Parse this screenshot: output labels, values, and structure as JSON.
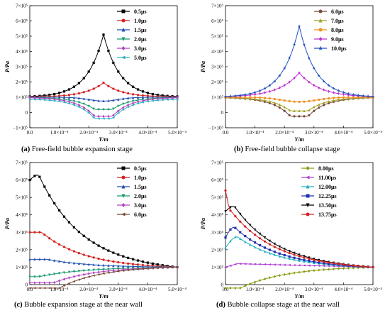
{
  "figure": {
    "panels": [
      {
        "id": "a",
        "caption_letter": "(a)",
        "caption_text": " Free-field bubble expansion stage",
        "xlabel": "Y/m",
        "ylabel": "P/Pa",
        "legend_position": "top-right"
      },
      {
        "id": "b",
        "caption_letter": "(b)",
        "caption_text": " Free-field bubble collapse stage",
        "xlabel": "Y/m",
        "ylabel": "P/Pa",
        "legend_position": "top-right"
      },
      {
        "id": "c",
        "caption_letter": "(c)",
        "caption_text": " Bubble expansion stage at the near wall",
        "xlabel": "Y/m",
        "ylabel": "P/Pa",
        "legend_position": "top-right"
      },
      {
        "id": "d",
        "caption_letter": "(d)",
        "caption_text": " Bubble collapse stage at the near wall",
        "xlabel": "Y/m",
        "ylabel": "P/Pa",
        "legend_position": "top-right"
      }
    ]
  },
  "chart_data": [
    {
      "type": "line",
      "xlabel": "Y/m",
      "ylabel": "P/Pa",
      "xlim": [
        0,
        0.0005
      ],
      "ylim": [
        -100000,
        700000
      ],
      "xticks": [
        "0.0",
        "1.0×10⁻⁴",
        "2.0×10⁻⁴",
        "3.0×10⁻⁴",
        "4.0×10⁻⁴",
        "5.0×10⁻⁴"
      ],
      "yticks": [
        "−1×10⁵",
        "0",
        "1×10⁵",
        "2×10⁵",
        "3×10⁵",
        "4×10⁵",
        "5×10⁵",
        "6×10⁵",
        "7×10⁵"
      ],
      "legend": "top-right",
      "series": [
        {
          "name": "0.5μs",
          "color": "#000000",
          "marker": "square",
          "shape": "peak",
          "base": 100000,
          "center": 510000,
          "width": 8e-05
        },
        {
          "name": "1.0μs",
          "color": "#d42020",
          "marker": "circle",
          "shape": "peak",
          "base": 100000,
          "center": 195000,
          "width": 9e-05
        },
        {
          "name": "1.5μs",
          "color": "#2050b0",
          "marker": "triangle",
          "shape": "dip",
          "base": 100000,
          "center": 75000,
          "width": 5e-05
        },
        {
          "name": "2.0μs",
          "color": "#1a9a70",
          "marker": "triangle-down",
          "shape": "flatdip",
          "base": 100000,
          "center": 20000,
          "width": 6e-05
        },
        {
          "name": "3.0μs",
          "color": "#b040c0",
          "marker": "diamond",
          "shape": "flatdip",
          "base": 100000,
          "center": -25000,
          "width": 6e-05
        },
        {
          "name": "5.0μs",
          "color": "#30b0c0",
          "marker": "triangle-left",
          "shape": "flatdip",
          "base": 90000,
          "center": -40000,
          "width": 6e-05
        }
      ]
    },
    {
      "type": "line",
      "xlabel": "Y/m",
      "ylabel": "P/Pa",
      "xlim": [
        0,
        0.0005
      ],
      "ylim": [
        -100000,
        700000
      ],
      "xticks": [
        "0.0",
        "1.0×10⁻⁴",
        "2.0×10⁻⁴",
        "3.0×10⁻⁴",
        "4.0×10⁻⁴",
        "5.0×10⁻⁴"
      ],
      "yticks": [
        "−1×10⁵",
        "0",
        "1×10⁵",
        "2×10⁵",
        "3×10⁵",
        "4×10⁵",
        "5×10⁵",
        "6×10⁵",
        "7×10⁵"
      ],
      "legend": "top-right",
      "series": [
        {
          "name": "6.0μs",
          "color": "#7a4b3a",
          "marker": "circle",
          "shape": "flatdip",
          "base": 100000,
          "center": -25000,
          "width": 6e-05
        },
        {
          "name": "7.0μs",
          "color": "#a0a020",
          "marker": "triangle",
          "shape": "flatdip",
          "base": 100000,
          "center": 10000,
          "width": 6e-05
        },
        {
          "name": "8.0μs",
          "color": "#f09020",
          "marker": "circle",
          "shape": "dip",
          "base": 100000,
          "center": 70000,
          "width": 6e-05
        },
        {
          "name": "9.0μs",
          "color": "#c030d0",
          "marker": "diamond",
          "shape": "peak",
          "base": 100000,
          "center": 260000,
          "width": 0.0001
        },
        {
          "name": "10.0μs",
          "color": "#2050c0",
          "marker": "star",
          "shape": "peak",
          "base": 100000,
          "center": 565000,
          "width": 8e-05
        }
      ]
    },
    {
      "type": "line",
      "xlabel": "Y/m",
      "ylabel": "P/Pa",
      "xlim": [
        0,
        0.0005
      ],
      "ylim": [
        0,
        700000
      ],
      "xticks": [
        "0.0",
        "1.0×10⁻⁴",
        "2.0×10⁻⁴",
        "3.0×10⁻⁴",
        "4.0×10⁻⁴",
        "5.0×10⁻⁴"
      ],
      "yticks": [
        "0",
        "1×10⁵",
        "2×10⁵",
        "3×10⁵",
        "4×10⁵",
        "5×10⁵",
        "6×10⁵",
        "7×10⁵"
      ],
      "legend": "top-right",
      "series": [
        {
          "name": "0.5μs",
          "color": "#000000",
          "marker": "square",
          "shape": "decay",
          "start": 600000,
          "peak": 630000,
          "end": 100000,
          "plateau": 3e-05
        },
        {
          "name": "1.0μs",
          "color": "#d42020",
          "marker": "circle",
          "shape": "decay",
          "start": 300000,
          "peak": 300000,
          "end": 100000,
          "plateau": 4e-05
        },
        {
          "name": "1.5μs",
          "color": "#2050b0",
          "marker": "triangle",
          "shape": "decay",
          "start": 145000,
          "peak": 145000,
          "end": 100000,
          "plateau": 6e-05
        },
        {
          "name": "2.0μs",
          "color": "#1a9a70",
          "marker": "triangle-down",
          "shape": "rise",
          "start": 45000,
          "end": 100000,
          "dip": 45000,
          "plateau": 3e-05
        },
        {
          "name": "3.0μs",
          "color": "#b040c0",
          "marker": "diamond",
          "shape": "rise",
          "start": 10000,
          "end": 100000,
          "dip": 10000,
          "plateau": 8e-05
        },
        {
          "name": "6.0μs",
          "color": "#7a4b3a",
          "marker": "triangle-left",
          "shape": "rise",
          "start": -20000,
          "end": 100000,
          "dip": -20000,
          "plateau": 0.0001
        }
      ]
    },
    {
      "type": "line",
      "xlabel": "Y/m",
      "ylabel": "P/Pa",
      "xlim": [
        0,
        0.0005
      ],
      "ylim": [
        0,
        700000
      ],
      "xticks": [
        "0.0",
        "1.0×10⁻⁴",
        "2.0×10⁻⁴",
        "3.0×10⁻⁴",
        "4.0×10⁻⁴",
        "5.0×10⁻⁴"
      ],
      "yticks": [
        "0",
        "1×10⁵",
        "2×10⁵",
        "3×10⁵",
        "4×10⁵",
        "5×10⁵",
        "6×10⁵",
        "7×10⁵"
      ],
      "legend": "top-right",
      "series": [
        {
          "name": "8.00μs",
          "color": "#8a9a10",
          "marker": "diamond",
          "shape": "rise",
          "start": -20000,
          "end": 100000,
          "dip": -20000,
          "plateau": 5e-05
        },
        {
          "name": "11.00μs",
          "color": "#b040d0",
          "marker": "triangle-left",
          "shape": "bump",
          "start": 100000,
          "peak": 120000,
          "end": 100000,
          "plateau": 4e-05
        },
        {
          "name": "12.00μs",
          "color": "#20b0c0",
          "marker": "triangle",
          "shape": "decay",
          "start": 210000,
          "peak": 275000,
          "end": 100000,
          "plateau": 4e-05
        },
        {
          "name": "12.25μs",
          "color": "#2030b0",
          "marker": "square",
          "shape": "decay",
          "start": 270000,
          "peak": 330000,
          "end": 100000,
          "plateau": 3e-05
        },
        {
          "name": "13.50μs",
          "color": "#000000",
          "marker": "triangle-down",
          "shape": "decay",
          "start": 420000,
          "peak": 450000,
          "end": 100000,
          "plateau": 3e-05
        },
        {
          "name": "13.75μs",
          "color": "#d42020",
          "marker": "circle",
          "shape": "decay",
          "start": 540000,
          "peak": 420000,
          "end": 100000,
          "plateau": 2e-05
        }
      ]
    }
  ]
}
